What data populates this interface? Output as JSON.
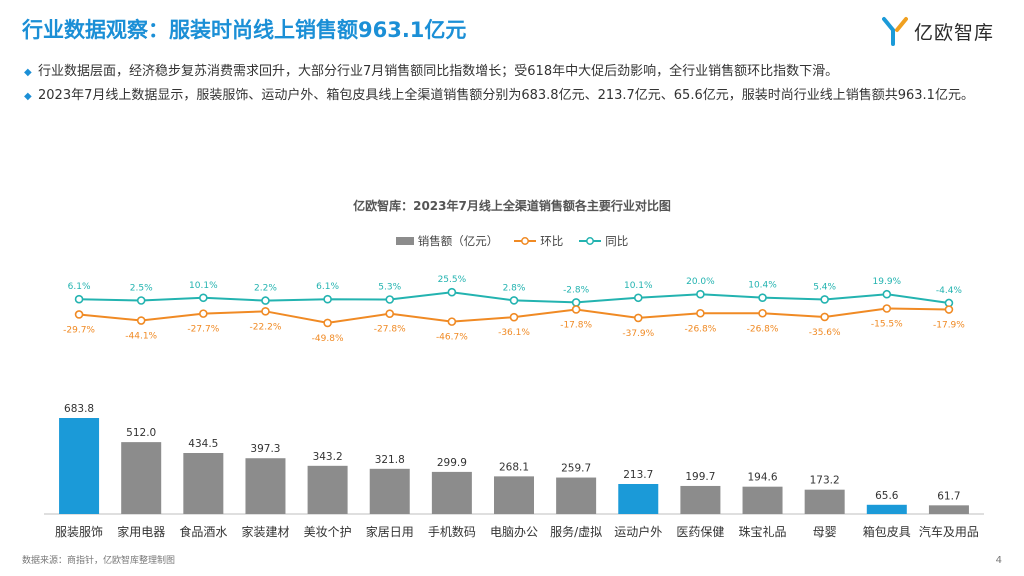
{
  "header": {
    "title": "行业数据观察：服装时尚线上销售额963.1亿元",
    "logo_text": "亿欧智库"
  },
  "bullets": [
    "行业数据层面，经济稳步复苏消费需求回升，大部分行业7月销售额同比指数增长；受618年中大促后劲影响，全行业销售额环比指数下滑。",
    "2023年7月线上数据显示，服装服饰、运动户外、箱包皮具线上全渠道销售额分别为683.8亿元、213.7亿元、65.6亿元，服装时尚行业线上销售额共963.1亿元。"
  ],
  "chart_data": {
    "type": "bar",
    "title": "亿欧智库：2023年7月线上全渠道销售额各主要行业对比图",
    "legend": [
      "销售额（亿元）",
      "环比",
      "同比"
    ],
    "categories": [
      "服装服饰",
      "家用电器",
      "食品酒水",
      "家装建材",
      "美妆个护",
      "家居日用",
      "手机数码",
      "电脑办公",
      "服务/虚拟",
      "运动户外",
      "医药保健",
      "珠宝礼品",
      "母婴",
      "箱包皮具",
      "汽车及用品"
    ],
    "sales": [
      683.8,
      512.0,
      434.5,
      397.3,
      343.2,
      321.8,
      299.9,
      268.1,
      259.7,
      213.7,
      199.7,
      194.6,
      173.2,
      65.6,
      61.7
    ],
    "sales_labels": [
      "683.8",
      "512.0",
      "434.5",
      "397.3",
      "343.2",
      "321.8",
      "299.9",
      "268.1",
      "259.7",
      "213.7",
      "199.7",
      "194.6",
      "173.2",
      "65.6",
      "61.7"
    ],
    "mom": [
      -29.7,
      -44.1,
      -27.7,
      -22.2,
      -49.8,
      -27.8,
      -46.7,
      -36.1,
      -17.8,
      -37.9,
      -26.8,
      -26.8,
      -35.6,
      -15.5,
      -17.9
    ],
    "mom_labels": [
      "-29.7%",
      "-44.1%",
      "-27.7%",
      "-22.2%",
      "-49.8%",
      "-27.8%",
      "-46.7%",
      "-36.1%",
      "-17.8%",
      "-37.9%",
      "-26.8%",
      "-26.8%",
      "-35.6%",
      "-15.5%",
      "-17.9%"
    ],
    "yoy": [
      6.1,
      2.5,
      10.1,
      2.2,
      6.1,
      5.3,
      25.5,
      2.8,
      -2.8,
      10.1,
      20.0,
      10.4,
      5.4,
      19.9,
      -4.4
    ],
    "yoy_labels": [
      "6.1%",
      "2.5%",
      "10.1%",
      "2.2%",
      "6.1%",
      "5.3%",
      "25.5%",
      "2.8%",
      "-2.8%",
      "10.1%",
      "20.0%",
      "10.4%",
      "5.4%",
      "19.9%",
      "-4.4%"
    ],
    "highlight": [
      "服装服饰",
      "运动户外",
      "箱包皮具"
    ],
    "colors": {
      "bar": "#8c8c8c",
      "highlight": "#1b9ad8",
      "mom": "#f08a24",
      "yoy": "#23b3b0"
    }
  },
  "footer": {
    "source": "数据来源：商指针，亿欧智库整理制图",
    "page": "4"
  }
}
